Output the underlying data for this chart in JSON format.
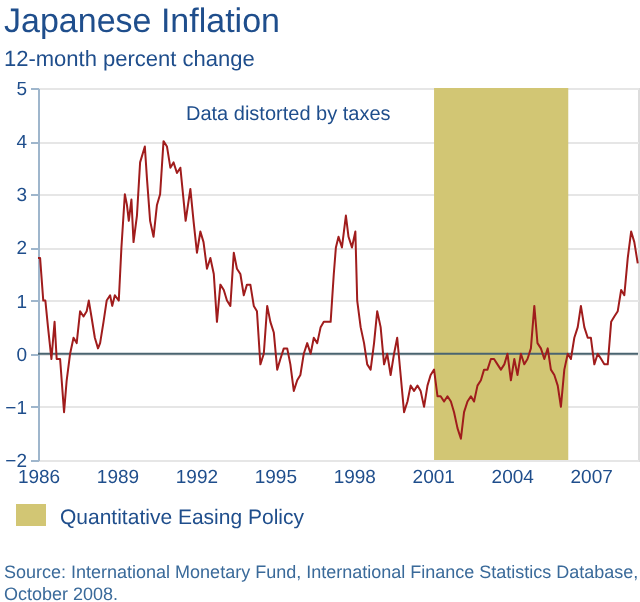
{
  "chart_data": {
    "type": "line",
    "title": "Japanese Inflation",
    "subtitle": "12-month percent change",
    "x": [
      1986.0,
      1986.08,
      1986.2,
      1986.28,
      1986.38,
      1986.51,
      1986.63,
      1986.71,
      1986.84,
      1986.99,
      1987.09,
      1987.22,
      1987.35,
      1987.47,
      1987.6,
      1987.73,
      1987.85,
      1987.93,
      1988.03,
      1988.16,
      1988.28,
      1988.36,
      1988.49,
      1988.61,
      1988.74,
      1988.82,
      1988.92,
      1989.07,
      1989.17,
      1989.3,
      1989.38,
      1989.45,
      1989.55,
      1989.63,
      1989.76,
      1989.88,
      1990.06,
      1990.14,
      1990.26,
      1990.39,
      1990.52,
      1990.64,
      1990.77,
      1990.9,
      1991.03,
      1991.15,
      1991.28,
      1991.41,
      1991.61,
      1991.79,
      1991.91,
      1992.04,
      1992.17,
      1992.29,
      1992.42,
      1992.55,
      1992.68,
      1992.8,
      1992.93,
      1993.06,
      1993.18,
      1993.31,
      1993.44,
      1993.56,
      1993.69,
      1993.82,
      1993.94,
      1994.07,
      1994.2,
      1994.32,
      1994.45,
      1994.58,
      1994.71,
      1994.83,
      1994.96,
      1995.09,
      1995.21,
      1995.34,
      1995.47,
      1995.59,
      1995.72,
      1995.85,
      1995.97,
      1996.1,
      1996.23,
      1996.36,
      1996.48,
      1996.61,
      1996.74,
      1996.86,
      1996.99,
      1997.12,
      1997.24,
      1997.32,
      1997.42,
      1997.55,
      1997.7,
      1997.8,
      1997.93,
      1998.06,
      1998.13,
      1998.26,
      1998.39,
      1998.51,
      1998.64,
      1998.77,
      1998.89,
      1999.02,
      1999.15,
      1999.27,
      1999.4,
      1999.53,
      1999.65,
      1999.78,
      1999.91,
      2000.04,
      2000.16,
      2000.29,
      2000.42,
      2000.54,
      2000.67,
      2000.8,
      2000.92,
      2001.05,
      2001.18,
      2001.3,
      2001.43,
      2001.56,
      2001.69,
      2001.81,
      2001.94,
      2002.07,
      2002.19,
      2002.32,
      2002.45,
      2002.57,
      2002.7,
      2002.83,
      2002.95,
      2003.08,
      2003.21,
      2003.33,
      2003.46,
      2003.59,
      2003.72,
      2003.84,
      2003.97,
      2004.1,
      2004.22,
      2004.35,
      2004.48,
      2004.6,
      2004.73,
      2004.86,
      2004.98,
      2005.11,
      2005.24,
      2005.37,
      2005.49,
      2005.62,
      2005.75,
      2005.87,
      2006.0,
      2006.13,
      2006.25,
      2006.38,
      2006.51,
      2006.63,
      2006.76,
      2006.89,
      2007.01,
      2007.14,
      2007.27,
      2007.4,
      2007.52,
      2007.65,
      2007.78,
      2007.9,
      2008.03,
      2008.16,
      2008.28,
      2008.41,
      2008.54,
      2008.66,
      2008.79
    ],
    "series": [
      {
        "color": "#a01c1c",
        "values": [
          1.8,
          1.8,
          1.0,
          1.0,
          0.5,
          -0.1,
          0.6,
          -0.1,
          -0.1,
          -1.1,
          -0.5,
          0,
          0.3,
          0.2,
          0.8,
          0.7,
          0.8,
          1.0,
          0.7,
          0.3,
          0.1,
          0.2,
          0.6,
          1.0,
          1.1,
          0.9,
          1.1,
          1.0,
          2.0,
          3.0,
          2.8,
          2.5,
          2.9,
          2.1,
          2.6,
          3.6,
          3.9,
          3.3,
          2.5,
          2.2,
          2.8,
          3.0,
          4.0,
          3.9,
          3.5,
          3.6,
          3.4,
          3.5,
          2.5,
          3.1,
          2.5,
          1.9,
          2.3,
          2.1,
          1.6,
          1.8,
          1.5,
          0.6,
          1.3,
          1.2,
          1.0,
          0.9,
          1.9,
          1.6,
          1.5,
          1.1,
          1.3,
          1.3,
          0.9,
          0.8,
          -0.2,
          0,
          0.9,
          0.6,
          0.4,
          -0.3,
          -0.1,
          0.1,
          0.1,
          -0.2,
          -0.7,
          -0.5,
          -0.4,
          0,
          0.2,
          0,
          0.3,
          0.2,
          0.5,
          0.6,
          0.6,
          0.6,
          1.5,
          2.0,
          2.2,
          2.0,
          2.6,
          2.2,
          2.0,
          2.3,
          1.0,
          0.5,
          0.2,
          -0.2,
          -0.3,
          0.2,
          0.8,
          0.5,
          -0.2,
          0,
          -0.4,
          0,
          0.3,
          -0.4,
          -1.1,
          -0.9,
          -0.6,
          -0.7,
          -0.6,
          -0.7,
          -1.0,
          -0.6,
          -0.4,
          -0.3,
          -0.8,
          -0.8,
          -0.9,
          -0.8,
          -0.9,
          -1.1,
          -1.4,
          -1.6,
          -1.1,
          -0.9,
          -0.8,
          -0.9,
          -0.6,
          -0.5,
          -0.3,
          -0.3,
          -0.1,
          -0.1,
          -0.2,
          -0.3,
          -0.2,
          0,
          -0.5,
          -0.1,
          -0.4,
          0,
          -0.2,
          -0.1,
          0.1,
          0.9,
          0.2,
          0.1,
          -0.1,
          0.1,
          -0.3,
          -0.4,
          -0.6,
          -1.0,
          -0.3,
          0,
          -0.1,
          0.3,
          0.5,
          0.9,
          0.5,
          0.3,
          0.3,
          -0.2,
          0,
          -0.1,
          -0.2,
          -0.2,
          0.6,
          0.7,
          0.8,
          1.2,
          1.1,
          1.8,
          2.3,
          2.1,
          1.7
        ]
      }
    ],
    "xlim": [
      1986,
      2008.8
    ],
    "xticks": [
      1986,
      1989,
      1992,
      1995,
      1998,
      2001,
      2004,
      2007
    ],
    "ylim": [
      -2,
      5
    ],
    "yticks": [
      -2,
      -1,
      0,
      1,
      2,
      3,
      4,
      5
    ],
    "grid": "y",
    "ref_lines": [
      {
        "axis": "y",
        "value": 0,
        "color": "#4a6470"
      }
    ],
    "bands": [
      {
        "axis": "x",
        "from": 2001.05,
        "to": 2006.15,
        "label": "Quantitative Easing Policy",
        "color": "#d2c674"
      }
    ],
    "legend": "bottom",
    "annotations": [
      "Data distorted by taxes",
      "Source: International Monetary Fund, International Finance Statistics Database,",
      "October 2008."
    ]
  }
}
